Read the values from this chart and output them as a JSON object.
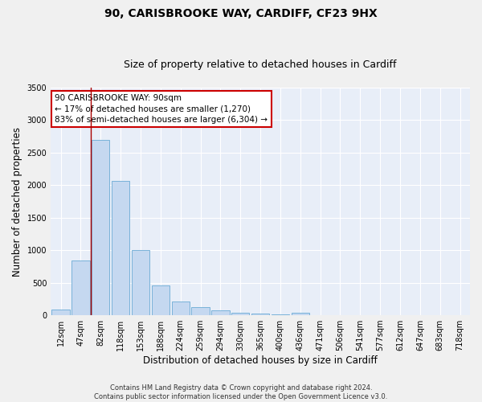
{
  "title_line1": "90, CARISBROOKE WAY, CARDIFF, CF23 9HX",
  "title_line2": "Size of property relative to detached houses in Cardiff",
  "xlabel": "Distribution of detached houses by size in Cardiff",
  "ylabel": "Number of detached properties",
  "categories": [
    "12sqm",
    "47sqm",
    "82sqm",
    "118sqm",
    "153sqm",
    "188sqm",
    "224sqm",
    "259sqm",
    "294sqm",
    "330sqm",
    "365sqm",
    "400sqm",
    "436sqm",
    "471sqm",
    "506sqm",
    "541sqm",
    "577sqm",
    "612sqm",
    "647sqm",
    "683sqm",
    "718sqm"
  ],
  "values": [
    90,
    840,
    2700,
    2060,
    1000,
    460,
    210,
    130,
    75,
    40,
    20,
    10,
    40,
    5,
    2,
    0,
    0,
    0,
    0,
    0,
    0
  ],
  "bar_color": "#c5d8f0",
  "bar_edge_color": "#6aaad4",
  "vline_color": "#aa0000",
  "vline_x_index": 2,
  "annotation_text": "90 CARISBROOKE WAY: 90sqm\n← 17% of detached houses are smaller (1,270)\n83% of semi-detached houses are larger (6,304) →",
  "annotation_edge_color": "#cc0000",
  "ylim": [
    0,
    3500
  ],
  "yticks": [
    0,
    500,
    1000,
    1500,
    2000,
    2500,
    3000,
    3500
  ],
  "fig_facecolor": "#f0f0f0",
  "ax_facecolor": "#e8eef8",
  "grid_color": "#ffffff",
  "footer_line1": "Contains HM Land Registry data © Crown copyright and database right 2024.",
  "footer_line2": "Contains public sector information licensed under the Open Government Licence v3.0.",
  "title_fontsize": 10,
  "subtitle_fontsize": 9,
  "axis_label_fontsize": 8.5,
  "tick_fontsize": 7,
  "annotation_fontsize": 7.5,
  "footer_fontsize": 6
}
